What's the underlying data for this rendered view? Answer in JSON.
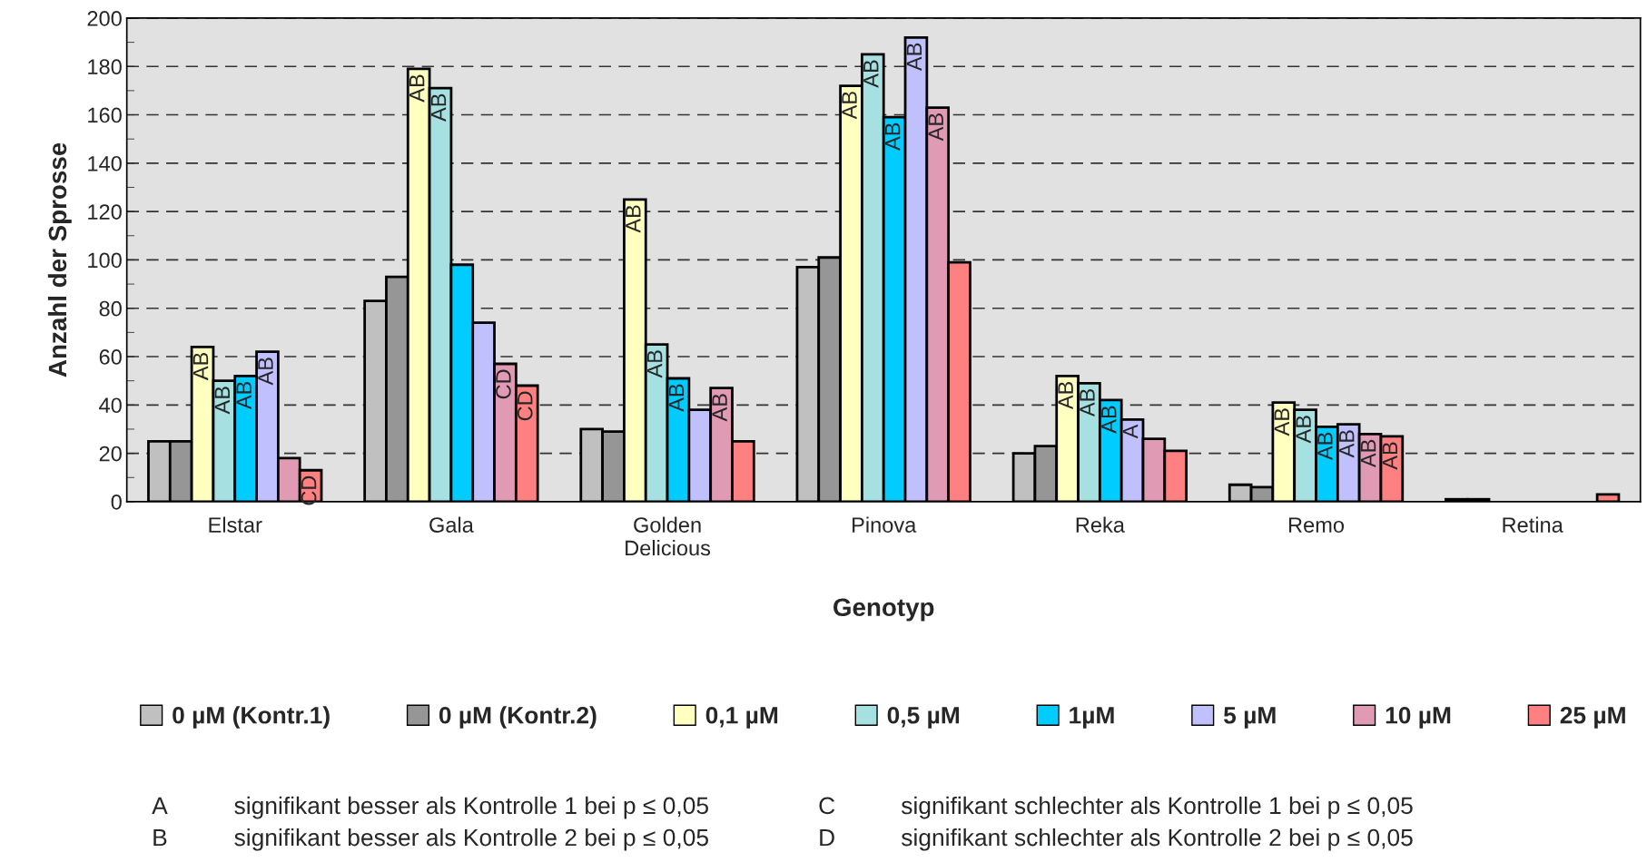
{
  "chart_data": {
    "type": "bar",
    "xlabel": "Genotyp",
    "ylabel": "Anzahl der Sprosse",
    "categories": [
      "Elstar",
      "Gala",
      "Golden\nDelicious",
      "Pinova",
      "Reka",
      "Remo",
      "Retina"
    ],
    "series": [
      {
        "name": "0 µM (Kontr.1)",
        "color": "#c0c0c0",
        "values": [
          25,
          83,
          30,
          97,
          20,
          7,
          1
        ]
      },
      {
        "name": "0 µM (Kontr.2)",
        "color": "#969696",
        "values": [
          25,
          93,
          29,
          101,
          23,
          6,
          1
        ]
      },
      {
        "name": "0,1 µM",
        "color": "#ffffc0",
        "values": [
          64,
          179,
          125,
          172,
          52,
          41,
          null
        ],
        "value_labels": [
          "AB",
          "AB",
          "AB",
          "AB",
          "AB",
          "AB",
          null
        ]
      },
      {
        "name": "0,5 µM",
        "color": "#a6e0e0",
        "values": [
          50,
          171,
          65,
          185,
          49,
          38,
          null
        ],
        "value_labels": [
          "AB",
          "AB",
          "AB",
          "AB",
          "AB",
          "AB",
          null
        ]
      },
      {
        "name": "1µM",
        "color": "#00ccff",
        "values": [
          52,
          98,
          51,
          159,
          42,
          31,
          null
        ],
        "value_labels": [
          "AB",
          null,
          "AB",
          "AB",
          "AB",
          "AB",
          null
        ]
      },
      {
        "name": "5 µM",
        "color": "#c0c0ff",
        "values": [
          62,
          74,
          38,
          192,
          34,
          32,
          null
        ],
        "value_labels": [
          "AB",
          null,
          null,
          "AB",
          "A",
          "AB",
          null
        ]
      },
      {
        "name": "10 µM",
        "color": "#e09ab4",
        "values": [
          18,
          57,
          47,
          163,
          26,
          28,
          null
        ],
        "value_labels": [
          null,
          "CD",
          "AB",
          "AB",
          null,
          "AB",
          null
        ]
      },
      {
        "name": "25 µM",
        "color": "#ff8080",
        "values": [
          13,
          48,
          25,
          99,
          21,
          27,
          3
        ],
        "value_labels": [
          "CD",
          "CD",
          null,
          null,
          null,
          "AB",
          null
        ]
      }
    ],
    "ylim": [
      0,
      200
    ],
    "yticks": [
      0,
      20,
      40,
      60,
      80,
      100,
      120,
      140,
      160,
      180,
      200
    ],
    "grid": "y",
    "legend": "bottom",
    "annotations": [
      "A",
      "signifikant besser als Kontrolle 1 bei p ≤ 0,05",
      "B",
      "signifikant besser als Kontrolle 2 bei p ≤ 0,05",
      "C",
      "signifikant schlechter als Kontrolle 1 bei p ≤ 0,05",
      "D",
      "signifikant schlechter als Kontrolle 2 bei p ≤ 0,05"
    ]
  }
}
